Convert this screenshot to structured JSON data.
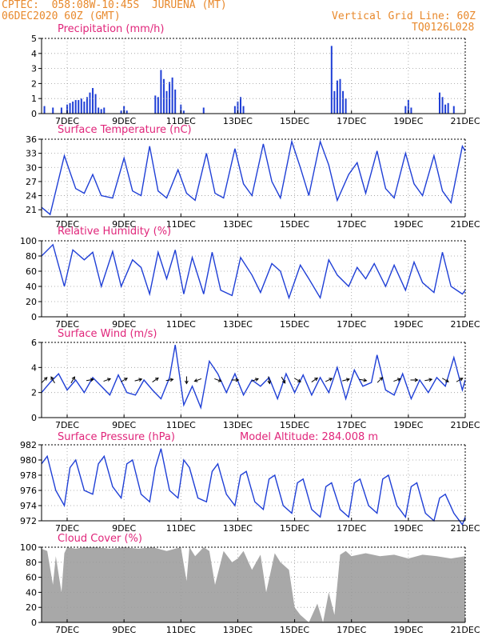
{
  "header": {
    "line1": "CPTEC:  058:08W-10:45S  JURUENA (MT)",
    "line2": "06DEC2020 60Z (GMT)",
    "grid_note": "Vertical Grid Line: 60Z",
    "code": "TQ0126L028"
  },
  "colors": {
    "header": "#e8892c",
    "title": "#e0257a",
    "series": "#1f3fd6",
    "cloud": "#a8a8a8",
    "grid": "#9a9a9a"
  },
  "x_axis": {
    "unit": "day of December 2020 (GMT)",
    "range": [
      6.1,
      21
    ],
    "ticks": [
      7,
      9,
      11,
      13,
      15,
      17,
      19,
      21
    ],
    "tick_labels": [
      "7DEC",
      "9DEC",
      "11DEC",
      "13DEC",
      "15DEC",
      "17DEC",
      "19DEC",
      "21DEC"
    ]
  },
  "chart_data": [
    {
      "id": "precip",
      "type": "bar",
      "title": "Precipitation (mm/h)",
      "ylim": [
        0,
        5
      ],
      "yticks": [
        0,
        1,
        2,
        3,
        4,
        5
      ],
      "x": [
        6.2,
        6.5,
        6.8,
        7.0,
        7.1,
        7.2,
        7.3,
        7.4,
        7.5,
        7.6,
        7.7,
        7.8,
        7.9,
        8.0,
        8.1,
        8.2,
        8.3,
        8.9,
        9.0,
        9.1,
        10.1,
        10.2,
        10.3,
        10.4,
        10.5,
        10.6,
        10.7,
        10.8,
        11.0,
        11.1,
        11.8,
        12.9,
        13.0,
        13.1,
        13.2,
        16.3,
        16.4,
        16.5,
        16.6,
        16.7,
        16.8,
        18.9,
        19.0,
        19.1,
        20.1,
        20.2,
        20.3,
        20.4,
        20.6
      ],
      "values": [
        0.5,
        0.4,
        0.4,
        0.6,
        0.7,
        0.8,
        0.9,
        0.9,
        1.0,
        0.8,
        1.1,
        1.4,
        1.7,
        1.3,
        0.4,
        0.3,
        0.4,
        0.2,
        0.5,
        0.2,
        1.2,
        1.1,
        2.9,
        2.3,
        1.5,
        2.1,
        2.4,
        1.6,
        0.6,
        0.2,
        0.4,
        0.5,
        0.8,
        1.1,
        0.5,
        4.5,
        1.5,
        2.2,
        2.3,
        1.5,
        1.0,
        0.5,
        0.9,
        0.4,
        1.4,
        1.1,
        0.6,
        0.7,
        0.5
      ]
    },
    {
      "id": "temp",
      "type": "line",
      "title": "Surface Temperature (nC)",
      "ylim": [
        19.5,
        36
      ],
      "yticks": [
        21,
        24,
        27,
        30,
        33,
        36
      ],
      "x": [
        6.1,
        6.4,
        6.9,
        7.3,
        7.6,
        7.9,
        8.2,
        8.6,
        9.0,
        9.3,
        9.6,
        9.9,
        10.2,
        10.5,
        10.9,
        11.2,
        11.5,
        11.9,
        12.2,
        12.5,
        12.9,
        13.2,
        13.5,
        13.9,
        14.2,
        14.5,
        14.9,
        15.2,
        15.5,
        15.9,
        16.2,
        16.5,
        16.9,
        17.2,
        17.5,
        17.9,
        18.2,
        18.5,
        18.9,
        19.2,
        19.5,
        19.9,
        20.2,
        20.5,
        20.9,
        21.0
      ],
      "values": [
        21.5,
        20.0,
        32.5,
        25.5,
        24.5,
        28.5,
        24.0,
        23.5,
        32.0,
        25.0,
        24.0,
        34.5,
        25.0,
        23.5,
        29.5,
        24.5,
        23.0,
        33.0,
        24.5,
        23.5,
        34.0,
        26.5,
        24.0,
        35.0,
        27.0,
        23.5,
        35.5,
        30.0,
        24.0,
        35.5,
        30.5,
        23.0,
        28.5,
        31.0,
        24.5,
        33.5,
        25.5,
        23.5,
        33.0,
        26.5,
        24.0,
        32.5,
        25.0,
        22.5,
        34.5,
        33.5
      ]
    },
    {
      "id": "rh",
      "type": "line",
      "title": "Relative Humidity (%)",
      "ylim": [
        0,
        100
      ],
      "yticks": [
        0,
        20,
        40,
        60,
        80,
        100
      ],
      "x": [
        6.1,
        6.5,
        6.9,
        7.2,
        7.6,
        7.9,
        8.2,
        8.6,
        8.9,
        9.3,
        9.6,
        9.9,
        10.2,
        10.5,
        10.8,
        11.1,
        11.4,
        11.8,
        12.1,
        12.4,
        12.8,
        13.1,
        13.5,
        13.8,
        14.2,
        14.5,
        14.8,
        15.2,
        15.5,
        15.9,
        16.2,
        16.5,
        16.9,
        17.2,
        17.5,
        17.8,
        18.2,
        18.5,
        18.9,
        19.2,
        19.5,
        19.9,
        20.2,
        20.5,
        20.9,
        21.0
      ],
      "values": [
        80,
        95,
        40,
        88,
        75,
        85,
        40,
        86,
        40,
        75,
        65,
        30,
        85,
        50,
        88,
        30,
        78,
        30,
        85,
        35,
        28,
        78,
        55,
        32,
        70,
        60,
        25,
        68,
        50,
        25,
        75,
        55,
        40,
        65,
        50,
        70,
        40,
        68,
        35,
        72,
        45,
        32,
        85,
        40,
        30,
        35
      ]
    },
    {
      "id": "wind",
      "type": "line",
      "title": "Surface Wind (m/s)",
      "ylim": [
        0,
        6
      ],
      "yticks": [
        0,
        2,
        4,
        6
      ],
      "x": [
        6.1,
        6.4,
        6.7,
        7.0,
        7.3,
        7.6,
        7.9,
        8.2,
        8.5,
        8.8,
        9.1,
        9.4,
        9.7,
        10.0,
        10.3,
        10.6,
        10.8,
        11.1,
        11.4,
        11.7,
        12.0,
        12.3,
        12.6,
        12.9,
        13.2,
        13.5,
        13.8,
        14.1,
        14.4,
        14.7,
        15.0,
        15.3,
        15.6,
        15.9,
        16.2,
        16.5,
        16.8,
        17.1,
        17.4,
        17.7,
        17.9,
        18.2,
        18.5,
        18.8,
        19.1,
        19.4,
        19.7,
        20.0,
        20.3,
        20.6,
        20.9,
        21.0
      ],
      "values": [
        2.0,
        2.8,
        3.5,
        2.2,
        3.0,
        2.0,
        3.2,
        2.5,
        1.8,
        3.4,
        2.0,
        1.8,
        3.0,
        2.2,
        1.5,
        3.2,
        5.8,
        1.0,
        2.5,
        0.8,
        4.5,
        3.5,
        2.0,
        3.5,
        1.8,
        3.0,
        2.5,
        3.2,
        1.5,
        3.5,
        2.0,
        3.4,
        1.8,
        3.2,
        2.0,
        4.0,
        1.5,
        3.8,
        2.5,
        2.8,
        5.0,
        2.2,
        1.8,
        3.5,
        1.5,
        3.0,
        2.0,
        3.2,
        2.5,
        4.8,
        2.2,
        3.0
      ],
      "arrows_x": [
        6.2,
        6.5,
        7.2,
        7.8,
        8.4,
        9.0,
        9.5,
        10.1,
        10.6,
        11.2,
        11.6,
        12.3,
        12.9,
        13.6,
        14.1,
        14.6,
        15.1,
        15.7,
        16.2,
        16.8,
        17.4,
        18.0,
        18.6,
        19.2,
        19.7,
        20.3,
        20.8
      ],
      "arrows_dir_deg": [
        45,
        120,
        60,
        10,
        20,
        30,
        15,
        35,
        10,
        270,
        200,
        340,
        0,
        20,
        280,
        300,
        330,
        35,
        25,
        15,
        350,
        45,
        20,
        0,
        10,
        330,
        30
      ]
    },
    {
      "id": "pres",
      "type": "line",
      "title": "Surface Pressure (hPa)",
      "annotation": "Model Altitude: 284.008 m",
      "ylim": [
        972,
        982
      ],
      "yticks": [
        972,
        974,
        976,
        978,
        980,
        982
      ],
      "x": [
        6.1,
        6.3,
        6.6,
        6.9,
        7.1,
        7.3,
        7.6,
        7.9,
        8.1,
        8.3,
        8.6,
        8.9,
        9.1,
        9.3,
        9.6,
        9.9,
        10.1,
        10.3,
        10.6,
        10.9,
        11.1,
        11.3,
        11.6,
        11.9,
        12.1,
        12.3,
        12.6,
        12.9,
        13.1,
        13.3,
        13.6,
        13.9,
        14.1,
        14.3,
        14.6,
        14.9,
        15.1,
        15.3,
        15.6,
        15.9,
        16.1,
        16.3,
        16.6,
        16.9,
        17.1,
        17.3,
        17.6,
        17.9,
        18.1,
        18.3,
        18.6,
        18.9,
        19.1,
        19.3,
        19.6,
        19.9,
        20.1,
        20.3,
        20.6,
        20.9,
        21.0
      ],
      "values": [
        979.5,
        980.5,
        976.0,
        974.0,
        979.0,
        980.0,
        976.0,
        975.5,
        979.5,
        980.5,
        976.5,
        975.0,
        979.5,
        980.0,
        975.5,
        974.5,
        979.0,
        981.5,
        976.0,
        975.0,
        980.0,
        979.0,
        975.0,
        974.5,
        978.5,
        979.5,
        975.5,
        974.0,
        978.0,
        978.5,
        974.5,
        973.5,
        977.5,
        978.0,
        974.0,
        973.0,
        977.0,
        977.5,
        973.5,
        972.5,
        976.5,
        977.0,
        973.5,
        972.5,
        977.0,
        977.5,
        974.0,
        973.0,
        977.5,
        978.0,
        974.0,
        972.5,
        976.5,
        977.0,
        973.0,
        972.0,
        975.0,
        975.5,
        973.0,
        971.5,
        972.5
      ]
    },
    {
      "id": "cloud",
      "type": "area",
      "title": "Cloud Cover (%)",
      "ylim": [
        0,
        100
      ],
      "yticks": [
        0,
        20,
        40,
        60,
        80,
        100
      ],
      "x": [
        6.1,
        6.3,
        6.5,
        6.6,
        6.8,
        6.9,
        7.0,
        7.3,
        7.6,
        8.0,
        8.5,
        9.0,
        9.5,
        10.0,
        10.5,
        11.0,
        11.2,
        11.3,
        11.5,
        11.8,
        12.0,
        12.2,
        12.5,
        12.8,
        13.0,
        13.2,
        13.5,
        13.8,
        14.0,
        14.3,
        14.5,
        14.8,
        15.0,
        15.2,
        15.5,
        15.8,
        16.0,
        16.2,
        16.4,
        16.6,
        16.8,
        17.0,
        17.5,
        18.0,
        18.5,
        19.0,
        19.5,
        20.0,
        20.5,
        21.0
      ],
      "values": [
        98,
        95,
        50,
        88,
        40,
        92,
        100,
        98,
        100,
        100,
        98,
        100,
        98,
        100,
        95,
        100,
        55,
        100,
        88,
        100,
        95,
        50,
        95,
        80,
        85,
        95,
        70,
        90,
        40,
        92,
        80,
        70,
        20,
        10,
        0,
        25,
        0,
        40,
        10,
        90,
        95,
        88,
        92,
        88,
        90,
        85,
        90,
        88,
        85,
        88
      ]
    }
  ]
}
